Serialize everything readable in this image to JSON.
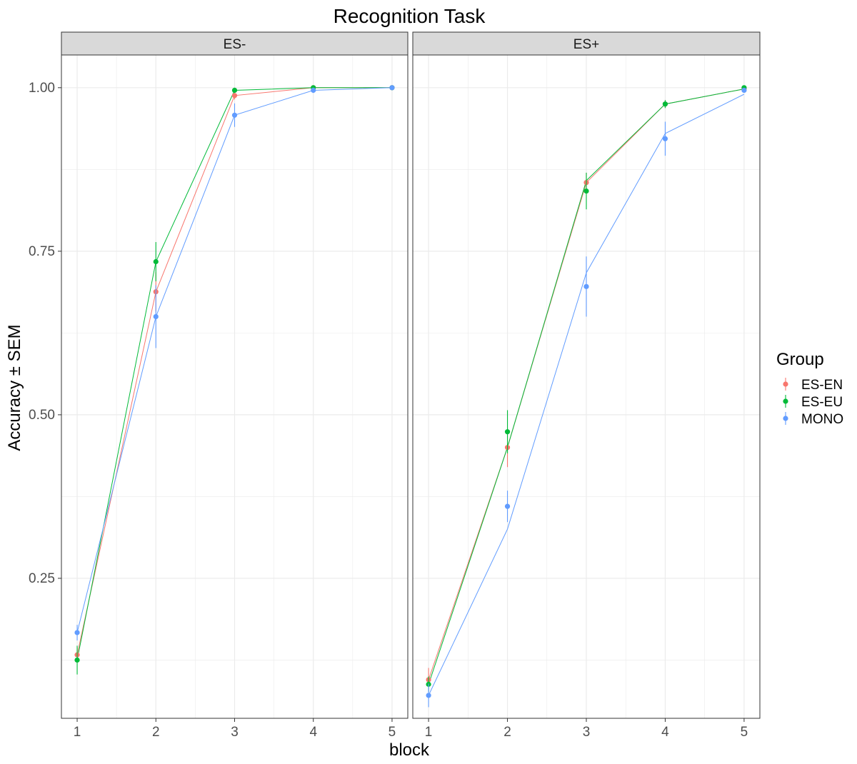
{
  "chart_data": {
    "type": "line",
    "title": "Recognition Task",
    "xlabel": "block",
    "ylabel": "Accuracy ± SEM",
    "x": [
      1,
      2,
      3,
      4,
      5
    ],
    "x_ticks": [
      "1",
      "2",
      "3",
      "4",
      "5"
    ],
    "y_ticks": [
      "0.25",
      "0.50",
      "0.75",
      "1.00"
    ],
    "y_tick_values": [
      0.25,
      0.5,
      0.75,
      1.0
    ],
    "ylim": [
      0.036,
      1.05
    ],
    "xlim": [
      0.8,
      5.2
    ],
    "grid": true,
    "legend": {
      "title": "Group",
      "placement": "right",
      "entries": [
        "ES-EN",
        "ES-EU",
        "MONO"
      ]
    },
    "panels": [
      {
        "label": "ES-",
        "series": [
          {
            "name": "ES-EN",
            "color": "#F8766D",
            "points": [
              0.133,
              0.688,
              0.988,
              1.0,
              1.0
            ],
            "line": [
              0.133,
              0.688,
              0.988,
              1.0,
              1.0
            ],
            "sem": [
              0.012,
              0.03,
              0.006,
              0.0,
              0.0
            ]
          },
          {
            "name": "ES-EU",
            "color": "#00BA38",
            "points": [
              0.125,
              0.734,
              0.996,
              1.0,
              1.0
            ],
            "line": [
              0.125,
              0.734,
              0.996,
              1.0,
              1.0
            ],
            "sem": [
              0.022,
              0.03,
              0.004,
              0.0,
              0.0
            ]
          },
          {
            "name": "MONO",
            "color": "#619CFF",
            "points": [
              0.167,
              0.65,
              0.958,
              0.996,
              1.0
            ],
            "line": [
              0.167,
              0.65,
              0.958,
              0.996,
              1.0
            ],
            "sem": [
              0.012,
              0.048,
              0.018,
              0.004,
              0.0
            ]
          }
        ]
      },
      {
        "label": "ES+",
        "series": [
          {
            "name": "ES-EN",
            "color": "#F8766D",
            "points": [
              0.095,
              0.45,
              0.855,
              0.975,
              0.998
            ],
            "line": [
              0.095,
              0.45,
              0.855,
              0.975,
              0.998
            ],
            "sem": [
              0.018,
              0.03,
              0.015,
              0.006,
              0.002
            ]
          },
          {
            "name": "ES-EU",
            "color": "#00BA38",
            "points": [
              0.088,
              0.474,
              0.842,
              0.975,
              1.0
            ],
            "line": [
              0.088,
              0.45,
              0.858,
              0.975,
              0.998
            ],
            "sem": [
              0.012,
              0.033,
              0.028,
              0.006,
              0.0
            ]
          },
          {
            "name": "MONO",
            "color": "#619CFF",
            "points": [
              0.071,
              0.36,
              0.696,
              0.922,
              0.996
            ],
            "line": [
              0.071,
              0.325,
              0.717,
              0.93,
              0.99
            ],
            "sem": [
              0.018,
              0.024,
              0.046,
              0.026,
              0.003
            ]
          }
        ]
      }
    ]
  }
}
